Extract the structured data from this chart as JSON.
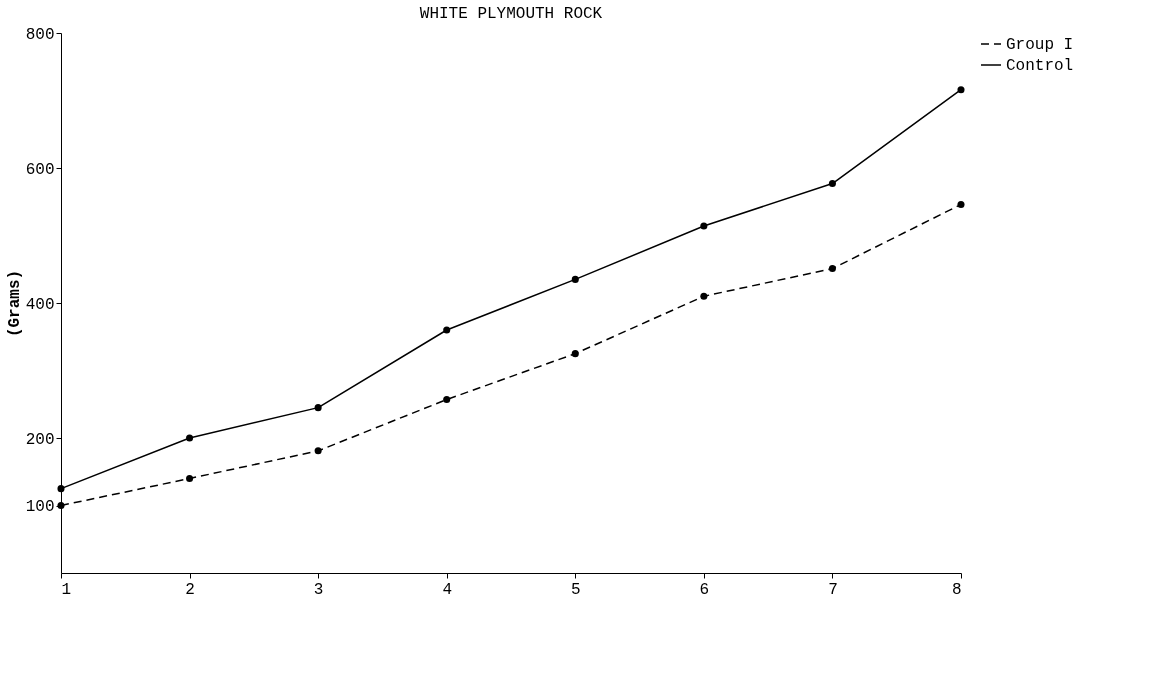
{
  "chart_data": {
    "type": "line",
    "title": "WHITE PLYMOUTH ROCK",
    "ylabel": "(Grams)",
    "x": [
      1,
      2,
      3,
      4,
      5,
      6,
      7,
      8
    ],
    "xlim": [
      1,
      8
    ],
    "xticks": [
      1,
      2,
      3,
      4,
      5,
      6,
      7,
      8
    ],
    "ylim": [
      0,
      800
    ],
    "yticks": [
      100,
      200,
      400,
      600,
      800
    ],
    "series": [
      {
        "name": "Group I",
        "color": "#000000",
        "line_style": "dashed",
        "values": [
          100,
          140,
          181,
          257,
          325,
          410,
          451,
          546
        ]
      },
      {
        "name": "Control",
        "color": "#000000",
        "line_style": "solid",
        "values": [
          125,
          200,
          245,
          360,
          435,
          514,
          577,
          716
        ]
      }
    ],
    "marker": "circle",
    "grid": false,
    "legend": "right"
  }
}
